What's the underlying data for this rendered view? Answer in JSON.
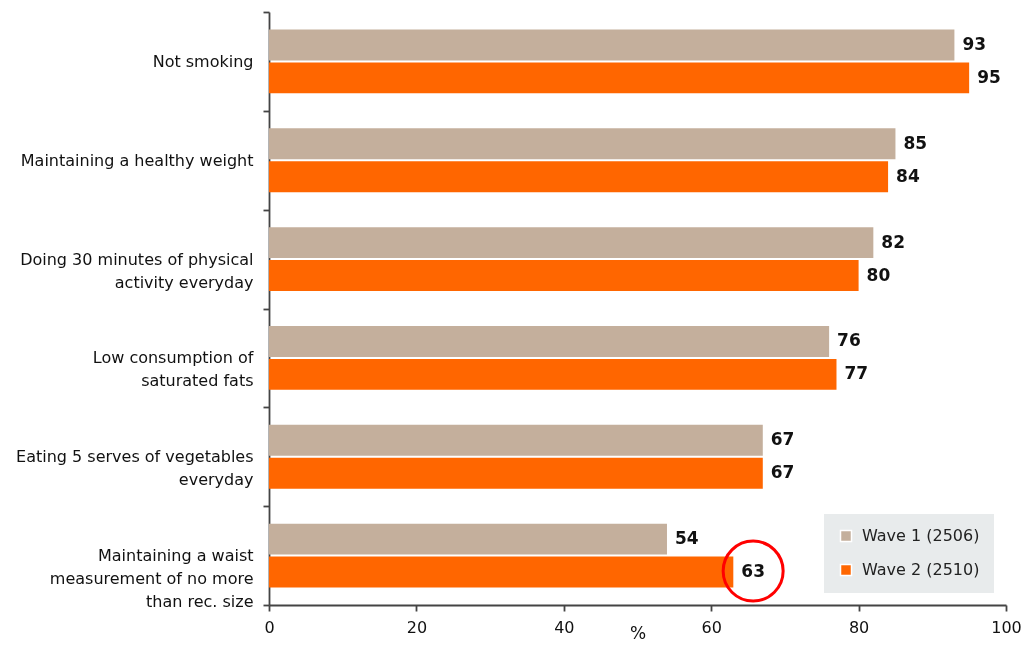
{
  "chart_data": {
    "type": "bar",
    "orientation": "horizontal",
    "categories": [
      "Not smoking",
      "Maintaining a healthy weight",
      "Doing 30 minutes of physical activity everyday",
      "Low consumption of saturated fats",
      "Eating 5 serves of vegetables everyday",
      "Maintaining a waist measurement of no more than rec. size"
    ],
    "series": [
      {
        "name": "Wave 1 (2506)",
        "color": "#c4af9c",
        "values": [
          93,
          85,
          82,
          76,
          67,
          54
        ]
      },
      {
        "name": "Wave 2 (2510)",
        "color": "#ff6600",
        "values": [
          95,
          84,
          80,
          77,
          67,
          63
        ]
      }
    ],
    "xlabel": "%",
    "xlim": [
      0,
      100
    ],
    "xticks": [
      0,
      20,
      40,
      60,
      80,
      100
    ],
    "data_labels": true,
    "legend": "bottom right"
  }
}
